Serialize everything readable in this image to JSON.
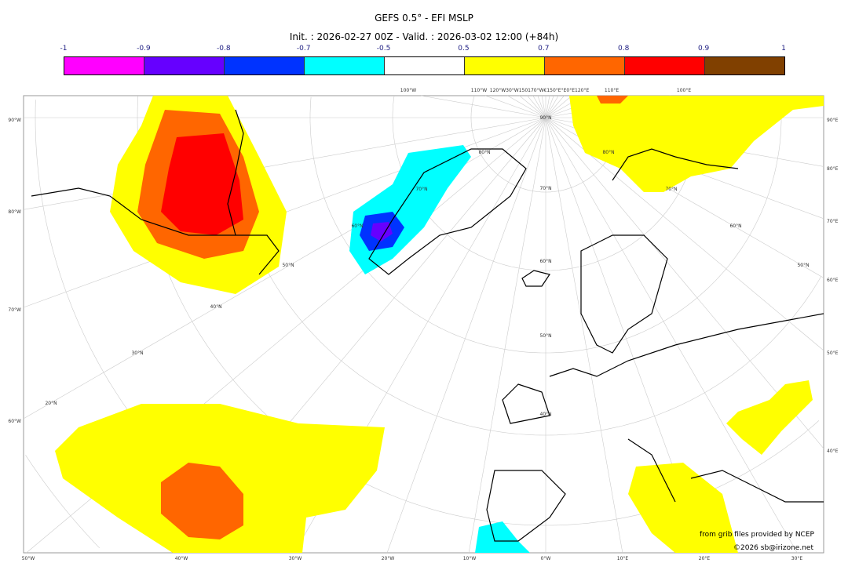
{
  "header": {
    "title": "GEFS 0.5° - EFI MSLP",
    "subtitle": "Init. : 2026-02-27 00Z - Valid. : 2026-03-02 12:00 (+84h)"
  },
  "colorbar": {
    "ticks": [
      "-1",
      "-0.9",
      "-0.8",
      "-0.7",
      "-0.5",
      "0.5",
      "0.7",
      "0.8",
      "0.9",
      "1"
    ],
    "colors": [
      "#ff00ff",
      "#6600ff",
      "#0033ff",
      "#00ffff",
      "#ffffff",
      "#ffff00",
      "#ff6600",
      "#ff0000",
      "#804000"
    ]
  },
  "map": {
    "left_labels": [
      "90°W",
      "80°W",
      "70°W",
      "60°W"
    ],
    "right_labels": [
      "90°E",
      "80°E",
      "70°E",
      "60°E",
      "50°E",
      "40°E"
    ],
    "bottom_labels": [
      "50°W",
      "40°W",
      "30°W",
      "20°W",
      "10°W",
      "0°W",
      "10°E",
      "20°E",
      "30°E"
    ],
    "top_labels": [
      "100°W",
      "110°W",
      "120°W30°W150170°W€150°E°E0°E120°E",
      "110°E",
      "100°E"
    ],
    "lat_labels": [
      "90°N",
      "80°N",
      "80°N",
      "70°N",
      "70°N",
      "70°N",
      "60°N",
      "60°N",
      "60°N",
      "50°N",
      "50°N",
      "50°N",
      "40°N",
      "40°N",
      "30°N",
      "20°N"
    ],
    "credit_source": "from grib files provided by NCEP",
    "credit_copyright": "©2026 sb@irizone.net"
  }
}
